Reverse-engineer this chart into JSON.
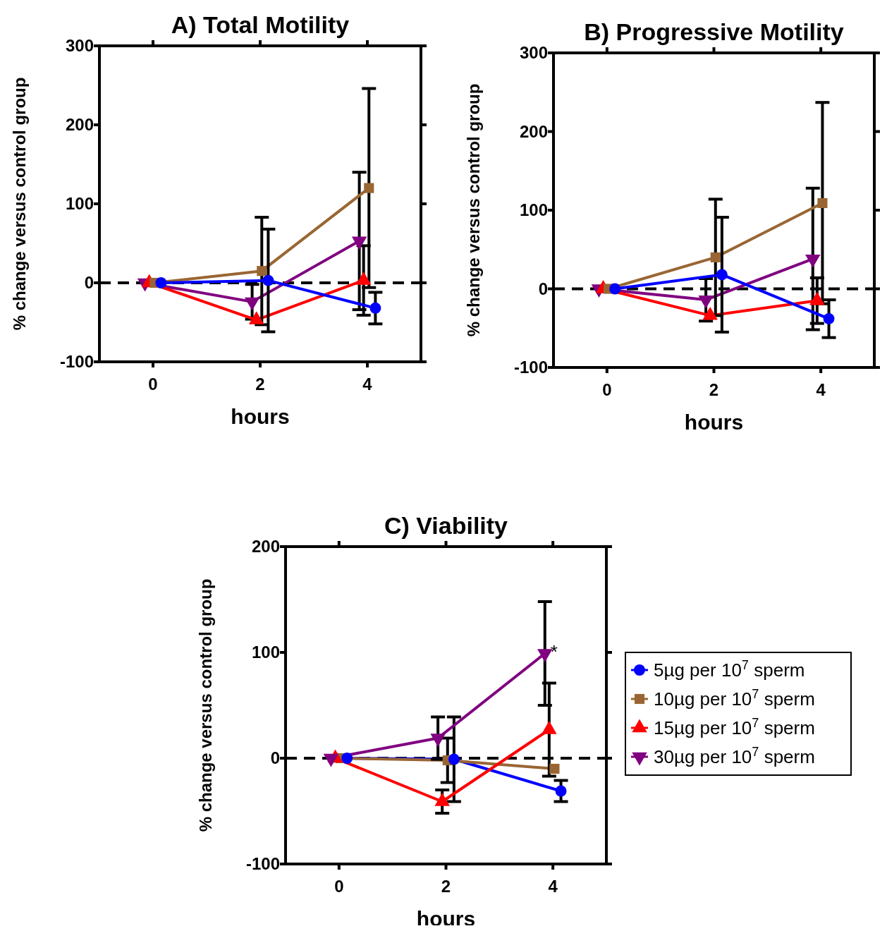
{
  "chart_data": [
    {
      "type": "line",
      "title": "A) Total Motility",
      "xlabel": "hours",
      "ylabel": "% change versus control group",
      "xlim": [
        -1,
        5
      ],
      "xticks": [
        0,
        2,
        4
      ],
      "ylim": [
        -100,
        300
      ],
      "yticks": [
        -100,
        0,
        100,
        200,
        300
      ],
      "legend": false,
      "ref_lines": [
        {
          "axis": "y",
          "value": 0,
          "color": "#000000",
          "line_style": "dashed"
        }
      ],
      "series": [
        {
          "color": "#800080",
          "marker": "triangle-down",
          "x": [
            -0.15,
            1.85,
            3.85
          ],
          "values": [
            0,
            -24,
            53
          ],
          "errors": [
            null,
            22,
            87
          ]
        },
        {
          "color": "#ff0000",
          "marker": "triangle",
          "x": [
            -0.07,
            1.93,
            3.93
          ],
          "values": [
            0,
            -47,
            3
          ],
          "errors": [
            null,
            null,
            44
          ]
        },
        {
          "color": "#996633",
          "marker": "square",
          "x": [
            0.03,
            2.03,
            4.03
          ],
          "values": [
            0,
            15,
            120
          ],
          "errors": [
            null,
            68,
            126
          ]
        },
        {
          "color": "#0000ff",
          "marker": "circle",
          "x": [
            0.15,
            2.15,
            4.15
          ],
          "values": [
            0,
            3,
            -32
          ],
          "errors": [
            null,
            65,
            20
          ]
        }
      ]
    },
    {
      "type": "line",
      "title": "B) Progressive Motility",
      "xlabel": "hours",
      "ylabel": "% change versus control group",
      "xlim": [
        -1,
        5
      ],
      "xticks": [
        0,
        2,
        4
      ],
      "ylim": [
        -100,
        300
      ],
      "yticks": [
        -100,
        0,
        100,
        200,
        300
      ],
      "legend": false,
      "ref_lines": [
        {
          "axis": "y",
          "value": 0,
          "color": "#000000",
          "line_style": "dashed"
        }
      ],
      "series": [
        {
          "color": "#800080",
          "marker": "triangle-down",
          "x": [
            -0.15,
            1.85,
            3.85
          ],
          "values": [
            0,
            -14,
            38
          ],
          "errors": [
            null,
            27,
            90
          ]
        },
        {
          "color": "#ff0000",
          "marker": "triangle",
          "x": [
            -0.07,
            1.93,
            3.93
          ],
          "values": [
            0,
            -34,
            -15
          ],
          "errors": [
            null,
            null,
            29
          ]
        },
        {
          "color": "#996633",
          "marker": "square",
          "x": [
            0.03,
            2.03,
            4.03
          ],
          "values": [
            0,
            40,
            109
          ],
          "errors": [
            null,
            74,
            128
          ]
        },
        {
          "color": "#0000ff",
          "marker": "circle",
          "x": [
            0.15,
            2.15,
            4.15
          ],
          "values": [
            0,
            18,
            -38
          ],
          "errors": [
            null,
            73,
            24
          ]
        }
      ]
    },
    {
      "type": "line",
      "title": "C) Viability",
      "xlabel": "hours",
      "ylabel": "% change versus control group",
      "xlim": [
        -1,
        5
      ],
      "xticks": [
        0,
        2,
        4
      ],
      "ylim": [
        -100,
        200
      ],
      "yticks": [
        -100,
        0,
        100,
        200
      ],
      "legend": "right",
      "ref_lines": [
        {
          "axis": "y",
          "value": 0,
          "color": "#000000",
          "line_style": "dashed"
        }
      ],
      "annotations": [
        {
          "text": "*",
          "x": 3.85,
          "y": 99
        }
      ],
      "series": [
        {
          "name": "5µg per 10$^{7}$ sperm",
          "color": "#0000ff",
          "marker": "circle",
          "x": [
            0.15,
            2.15,
            4.15
          ],
          "values": [
            0,
            -1,
            -31
          ],
          "errors": [
            null,
            40,
            10
          ]
        },
        {
          "name": "10µg per 10$^{7}$ sperm",
          "color": "#996633",
          "marker": "square",
          "x": [
            0.03,
            2.03,
            4.03
          ],
          "values": [
            0,
            -2,
            -10
          ],
          "errors": [
            null,
            21,
            null
          ]
        },
        {
          "name": "15µg per 10$^{7}$ sperm",
          "color": "#ff0000",
          "marker": "triangle",
          "x": [
            -0.07,
            1.93,
            3.93
          ],
          "values": [
            0,
            -41,
            27
          ],
          "errors": [
            null,
            11,
            44
          ]
        },
        {
          "name": "30µg per 10$^{7}$ sperm",
          "color": "#800080",
          "marker": "triangle-down",
          "x": [
            -0.15,
            1.85,
            3.85
          ],
          "values": [
            0,
            19,
            99
          ],
          "errors": [
            null,
            20,
            49
          ]
        }
      ]
    }
  ]
}
